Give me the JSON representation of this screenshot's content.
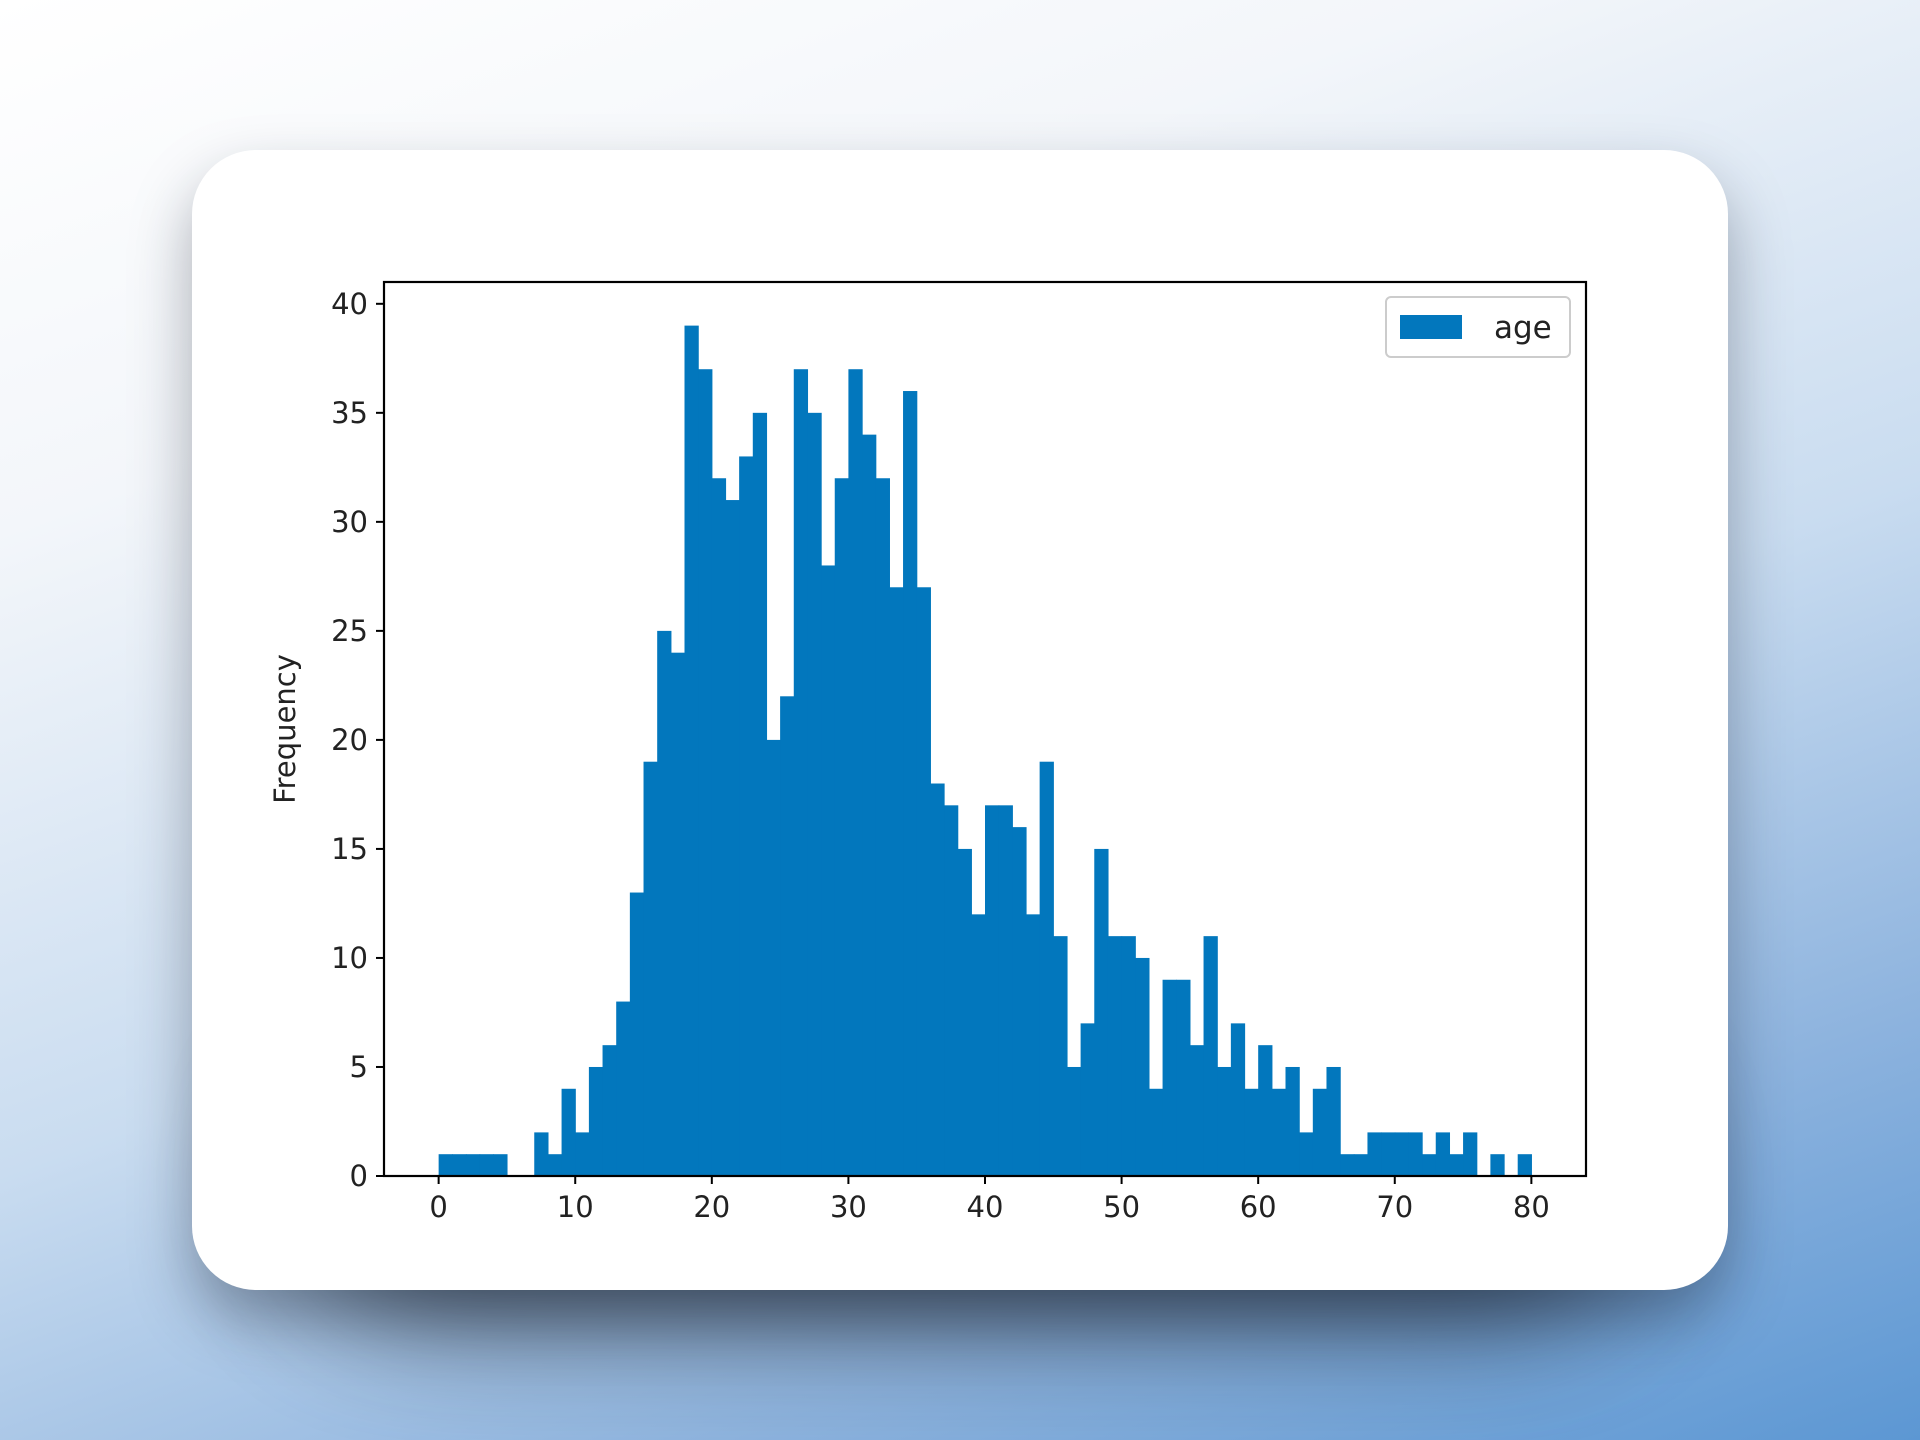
{
  "chart_data": {
    "type": "bar",
    "title": "",
    "xlabel": "",
    "ylabel": "Frequency",
    "legend": {
      "entries": [
        "age"
      ],
      "placement": "top-right"
    },
    "grid": false,
    "xlim": [
      -4,
      84
    ],
    "ylim": [
      0,
      41
    ],
    "x_ticks": [
      0,
      10,
      20,
      30,
      40,
      50,
      60,
      70,
      80
    ],
    "y_ticks": [
      0,
      5,
      10,
      15,
      20,
      25,
      30,
      35,
      40
    ],
    "bin_width": 1,
    "bin_start": 0,
    "series": [
      {
        "name": "age",
        "color": "#0277bd",
        "values": [
          1,
          1,
          1,
          1,
          1,
          0,
          0,
          2,
          1,
          4,
          2,
          5,
          6,
          8,
          13,
          19,
          25,
          24,
          39,
          37,
          32,
          31,
          33,
          35,
          20,
          22,
          37,
          35,
          28,
          32,
          37,
          34,
          32,
          27,
          36,
          27,
          18,
          17,
          15,
          12,
          17,
          17,
          16,
          12,
          19,
          11,
          5,
          7,
          15,
          11,
          11,
          10,
          4,
          9,
          9,
          6,
          11,
          5,
          7,
          4,
          6,
          4,
          5,
          2,
          4,
          5,
          1,
          1,
          2,
          2,
          2,
          2,
          1,
          2,
          1,
          2,
          0,
          1,
          0,
          1
        ]
      }
    ]
  }
}
